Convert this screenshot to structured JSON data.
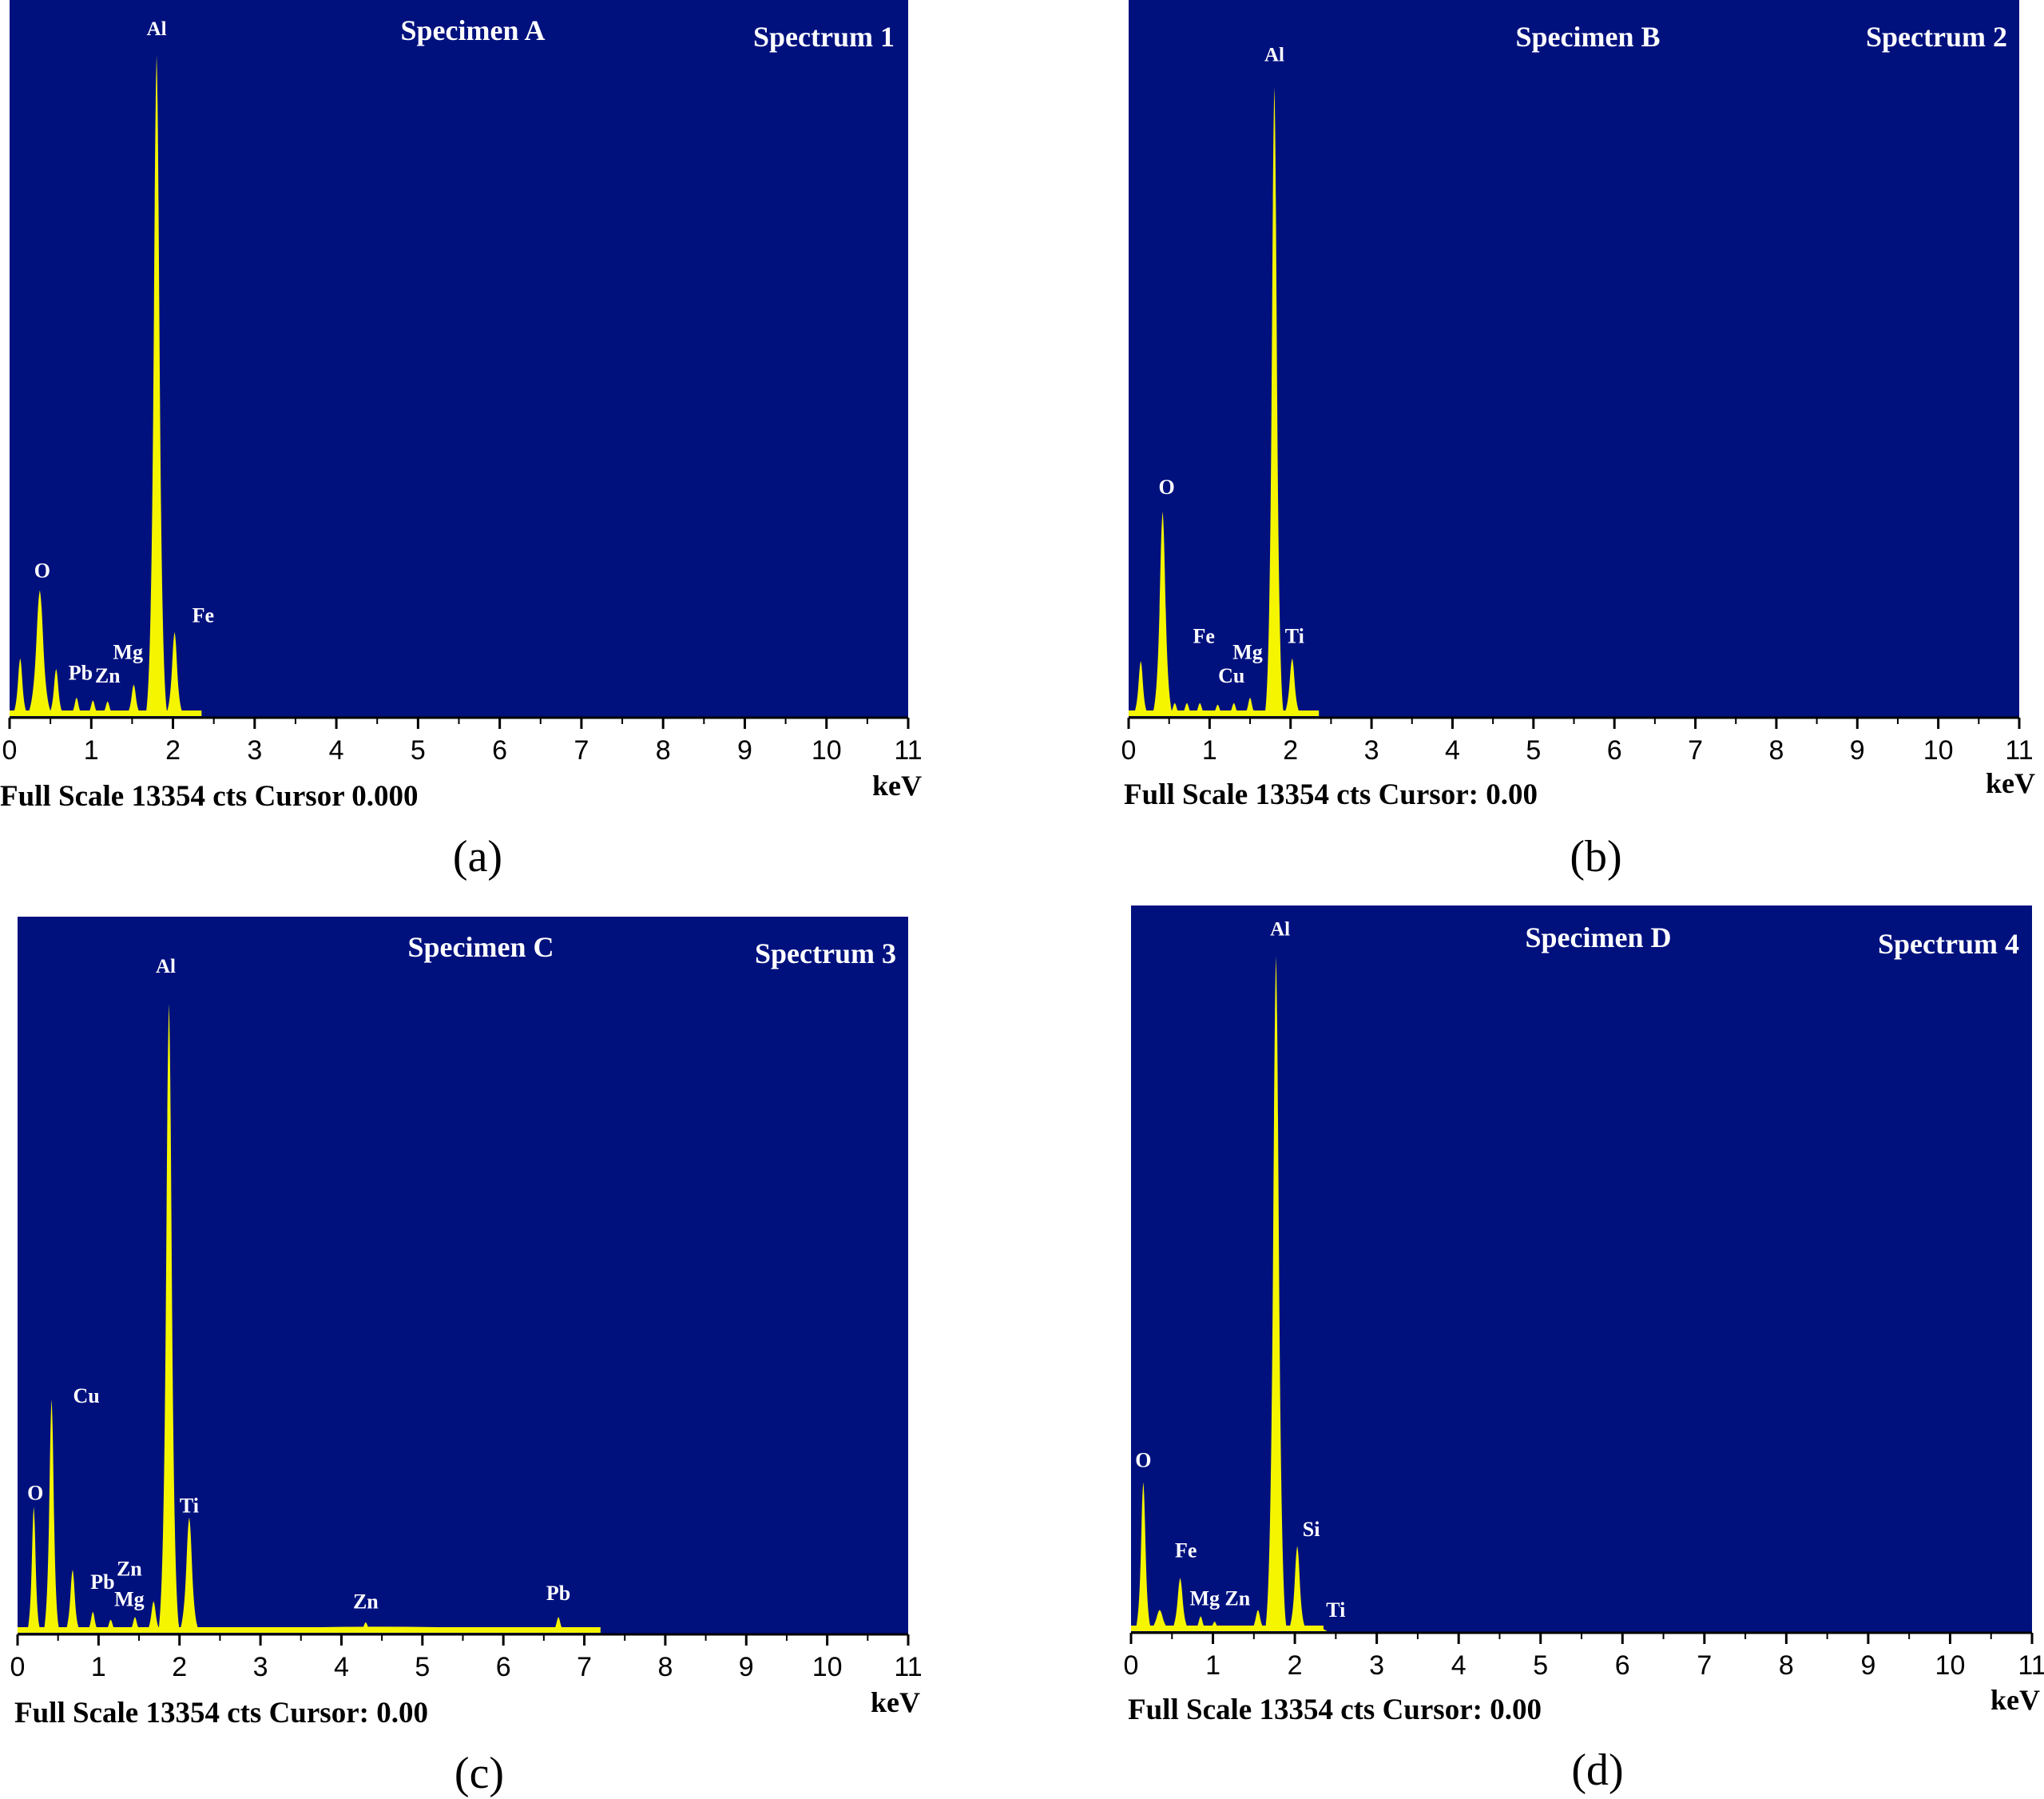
{
  "colors": {
    "plot_bg": "#00117e",
    "spectrum": "#f5f500",
    "text_on_plot": "#ffffff"
  },
  "captions": [
    "(a)",
    "(b)",
    "(c)",
    "(d)"
  ],
  "chart_data": [
    {
      "type": "area",
      "title": "Specimen A",
      "spectrum_label": "Spectrum 1",
      "footer": "Full Scale 13354 cts Cursor 0.000",
      "xlabel": "keV",
      "xlim": [
        0,
        11
      ],
      "x_ticks": [
        "0",
        "1",
        "2",
        "3",
        "4",
        "5",
        "6",
        "7",
        "8",
        "9",
        "10",
        "11"
      ],
      "ylim": [
        0,
        13354
      ],
      "peaks": [
        {
          "element": "",
          "x": 0.13,
          "y": 1100,
          "w": 0.035
        },
        {
          "element": "O",
          "x": 0.37,
          "y": 2400,
          "w": 0.055
        },
        {
          "element": "",
          "x": 0.57,
          "y": 900,
          "w": 0.035
        },
        {
          "element": "Pb",
          "x": 0.82,
          "y": 350,
          "w": 0.03
        },
        {
          "element": "Zn",
          "x": 1.02,
          "y": 300,
          "w": 0.03
        },
        {
          "element": "",
          "x": 1.2,
          "y": 280,
          "w": 0.03
        },
        {
          "element": "Mg",
          "x": 1.52,
          "y": 600,
          "w": 0.035
        },
        {
          "element": "Al",
          "x": 1.8,
          "y": 12600,
          "w": 0.045
        },
        {
          "element": "Fe",
          "x": 2.02,
          "y": 1600,
          "w": 0.04
        }
      ],
      "labels": [
        {
          "text": "O",
          "x": 0.4,
          "y": 2550
        },
        {
          "text": "Pb",
          "x": 0.87,
          "y": 600
        },
        {
          "text": "Zn",
          "x": 1.2,
          "y": 550
        },
        {
          "text": "Mg",
          "x": 1.45,
          "y": 1000
        },
        {
          "text": "Al",
          "x": 1.8,
          "y": 12900
        },
        {
          "text": "Fe",
          "x": 2.37,
          "y": 1700
        }
      ]
    },
    {
      "type": "area",
      "title": "Specimen B",
      "spectrum_label": "Spectrum 2",
      "footer": "Full Scale 13354 cts Cursor: 0.00",
      "xlabel": "keV",
      "xlim": [
        0,
        11
      ],
      "x_ticks": [
        "0",
        "1",
        "2",
        "3",
        "4",
        "5",
        "6",
        "7",
        "8",
        "9",
        "10",
        "11"
      ],
      "ylim": [
        0,
        13354
      ],
      "peaks": [
        {
          "element": "",
          "x": 0.15,
          "y": 1050,
          "w": 0.035
        },
        {
          "element": "O",
          "x": 0.42,
          "y": 3900,
          "w": 0.045
        },
        {
          "element": "",
          "x": 0.57,
          "y": 250,
          "w": 0.03
        },
        {
          "element": "Fe",
          "x": 0.72,
          "y": 250,
          "w": 0.03
        },
        {
          "element": "",
          "x": 0.88,
          "y": 250,
          "w": 0.03
        },
        {
          "element": "Cu",
          "x": 1.1,
          "y": 220,
          "w": 0.03
        },
        {
          "element": "",
          "x": 1.3,
          "y": 250,
          "w": 0.03
        },
        {
          "element": "Mg",
          "x": 1.5,
          "y": 350,
          "w": 0.03
        },
        {
          "element": "Al",
          "x": 1.8,
          "y": 12000,
          "w": 0.04
        },
        {
          "element": "Ti",
          "x": 2.02,
          "y": 1100,
          "w": 0.04
        }
      ],
      "labels": [
        {
          "text": "O",
          "x": 0.47,
          "y": 4150
        },
        {
          "text": "Fe",
          "x": 0.93,
          "y": 1300
        },
        {
          "text": "Cu",
          "x": 1.27,
          "y": 550
        },
        {
          "text": "Mg",
          "x": 1.47,
          "y": 1000
        },
        {
          "text": "Ti",
          "x": 2.05,
          "y": 1300
        },
        {
          "text": "Al",
          "x": 1.8,
          "y": 12400
        }
      ]
    },
    {
      "type": "area",
      "title": "Specimen C",
      "spectrum_label": "Spectrum 3",
      "footer": "Full Scale 13354 cts Cursor: 0.00",
      "xlabel": "keV",
      "xlim": [
        0,
        11
      ],
      "x_ticks": [
        "0",
        "1",
        "2",
        "3",
        "4",
        "5",
        "6",
        "7",
        "8",
        "9",
        "10",
        "11"
      ],
      "ylim": [
        0,
        13354
      ],
      "background": {
        "x_start": 2.2,
        "x_end": 7.2,
        "level": 80
      },
      "peaks": [
        {
          "element": "O",
          "x": 0.2,
          "y": 2400,
          "w": 0.03
        },
        {
          "element": "Cu",
          "x": 0.42,
          "y": 4450,
          "w": 0.035
        },
        {
          "element": "",
          "x": 0.68,
          "y": 1200,
          "w": 0.035
        },
        {
          "element": "Pb",
          "x": 0.93,
          "y": 400,
          "w": 0.03
        },
        {
          "element": "Mg",
          "x": 1.15,
          "y": 250,
          "w": 0.03
        },
        {
          "element": "Zn",
          "x": 1.45,
          "y": 300,
          "w": 0.03
        },
        {
          "element": "",
          "x": 1.68,
          "y": 600,
          "w": 0.035
        },
        {
          "element": "Al",
          "x": 1.87,
          "y": 12000,
          "w": 0.045
        },
        {
          "element": "Ti",
          "x": 2.12,
          "y": 2200,
          "w": 0.045
        },
        {
          "element": "Zn",
          "x": 4.3,
          "y": 200,
          "w": 0.03
        },
        {
          "element": "Pb",
          "x": 6.68,
          "y": 300,
          "w": 0.03
        }
      ],
      "labels": [
        {
          "text": "O",
          "x": 0.22,
          "y": 2450
        },
        {
          "text": "Cu",
          "x": 0.85,
          "y": 4300
        },
        {
          "text": "Pb",
          "x": 1.05,
          "y": 750
        },
        {
          "text": "Mg",
          "x": 1.38,
          "y": 420
        },
        {
          "text": "Zn",
          "x": 1.38,
          "y": 1000
        },
        {
          "text": "Ti",
          "x": 2.12,
          "y": 2200
        },
        {
          "text": "Al",
          "x": 1.83,
          "y": 12500
        },
        {
          "text": "Zn",
          "x": 4.3,
          "y": 370
        },
        {
          "text": "Pb",
          "x": 6.68,
          "y": 530
        }
      ]
    },
    {
      "type": "area",
      "title": "Specimen D",
      "spectrum_label": "Spectrum 4",
      "footer": "Full Scale 13354 cts Cursor: 0.00",
      "xlabel": "keV",
      "xlim": [
        0,
        11
      ],
      "x_ticks": [
        "0",
        "1",
        "2",
        "3",
        "4",
        "5",
        "6",
        "7",
        "8",
        "9",
        "10",
        "11"
      ],
      "ylim": [
        0,
        13354
      ],
      "peaks": [
        {
          "element": "O",
          "x": 0.15,
          "y": 2800,
          "w": 0.035
        },
        {
          "element": "",
          "x": 0.35,
          "y": 400,
          "w": 0.05
        },
        {
          "element": "Fe",
          "x": 0.6,
          "y": 1000,
          "w": 0.04
        },
        {
          "element": "Mg",
          "x": 0.85,
          "y": 280,
          "w": 0.03
        },
        {
          "element": "Zn",
          "x": 1.02,
          "y": 180,
          "w": 0.03
        },
        {
          "element": "",
          "x": 1.55,
          "y": 400,
          "w": 0.035
        },
        {
          "element": "Al",
          "x": 1.77,
          "y": 12700,
          "w": 0.045
        },
        {
          "element": "Si",
          "x": 2.03,
          "y": 1600,
          "w": 0.04
        },
        {
          "element": "Ti",
          "x": 2.3,
          "y": 100,
          "w": 0.03
        }
      ],
      "labels": [
        {
          "text": "O",
          "x": 0.15,
          "y": 3000
        },
        {
          "text": "Fe",
          "x": 0.67,
          "y": 1300
        },
        {
          "text": "Mg",
          "x": 0.9,
          "y": 400
        },
        {
          "text": "Zn",
          "x": 1.3,
          "y": 400
        },
        {
          "text": "Si",
          "x": 2.2,
          "y": 1700
        },
        {
          "text": "Ti",
          "x": 2.5,
          "y": 180
        },
        {
          "text": "Al",
          "x": 1.82,
          "y": 13000
        }
      ]
    }
  ]
}
